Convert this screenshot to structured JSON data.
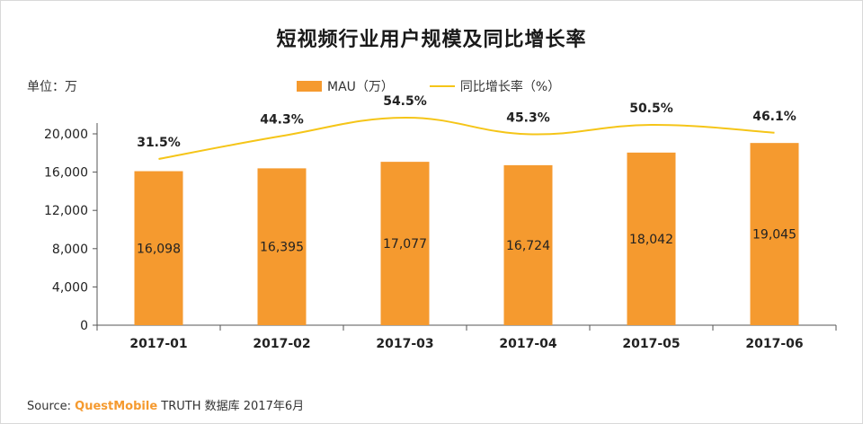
{
  "colors": {
    "bar": "#f59a2f",
    "line": "#f5c518",
    "axis": "#555555",
    "text": "#222222"
  },
  "unit_label": "单位：万",
  "legend": {
    "bar_label": "MAU（万）",
    "line_label": "同比增长率（%）"
  },
  "source": {
    "prefix": "Source:",
    "brand": "QuestMobile",
    "suffix": "TRUTH 数据库 2017年6月"
  },
  "chart_data": {
    "type": "bar",
    "title": "短视频行业用户规模及同比增长率",
    "xlabel": "",
    "ylabel": "单位：万",
    "categories": [
      "2017-01",
      "2017-02",
      "2017-03",
      "2017-04",
      "2017-05",
      "2017-06"
    ],
    "ylim": [
      0,
      20000
    ],
    "yticks": [
      0,
      4000,
      8000,
      12000,
      16000,
      20000
    ],
    "ytick_labels": [
      "0",
      "4,000",
      "8,000",
      "12,000",
      "16,000",
      "20,000"
    ],
    "series": [
      {
        "name": "MAU（万）",
        "type": "bar",
        "values": [
          16098,
          16395,
          17077,
          16724,
          18042,
          19045
        ],
        "labels": [
          "16,098",
          "16,395",
          "17,077",
          "16,724",
          "18,042",
          "19,045"
        ]
      },
      {
        "name": "同比增长率（%）",
        "type": "line",
        "values": [
          31.5,
          44.3,
          54.5,
          45.3,
          50.5,
          46.1
        ],
        "labels": [
          "31.5%",
          "44.3%",
          "54.5%",
          "45.3%",
          "50.5%",
          "46.1%"
        ]
      }
    ]
  }
}
